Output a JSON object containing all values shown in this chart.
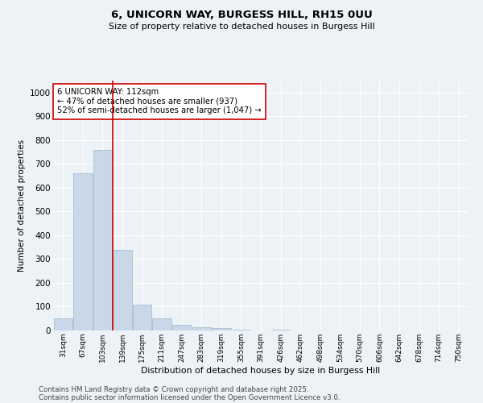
{
  "title1": "6, UNICORN WAY, BURGESS HILL, RH15 0UU",
  "title2": "Size of property relative to detached houses in Burgess Hill",
  "xlabel": "Distribution of detached houses by size in Burgess Hill",
  "ylabel": "Number of detached properties",
  "bins": [
    "31sqm",
    "67sqm",
    "103sqm",
    "139sqm",
    "175sqm",
    "211sqm",
    "247sqm",
    "283sqm",
    "319sqm",
    "355sqm",
    "391sqm",
    "426sqm",
    "462sqm",
    "498sqm",
    "534sqm",
    "570sqm",
    "606sqm",
    "642sqm",
    "678sqm",
    "714sqm",
    "750sqm"
  ],
  "values": [
    50,
    660,
    760,
    340,
    110,
    50,
    25,
    15,
    10,
    5,
    0,
    3,
    0,
    0,
    0,
    0,
    0,
    0,
    0,
    0,
    0
  ],
  "bar_color": "#c8d8e8",
  "bar_edge_color": "#a8bece",
  "vline_color": "#cc0000",
  "annotation_text": "6 UNICORN WAY: 112sqm\n← 47% of detached houses are smaller (937)\n52% of semi-detached houses are larger (1,047) →",
  "annotation_box_color": "#ffffff",
  "annotation_box_edge_color": "#cc0000",
  "ylim": [
    0,
    1050
  ],
  "yticks": [
    0,
    100,
    200,
    300,
    400,
    500,
    600,
    700,
    800,
    900,
    1000
  ],
  "background_color": "#edf2f7",
  "grid_color": "#ffffff",
  "footer1": "Contains HM Land Registry data © Crown copyright and database right 2025.",
  "footer2": "Contains public sector information licensed under the Open Government Licence v3.0."
}
